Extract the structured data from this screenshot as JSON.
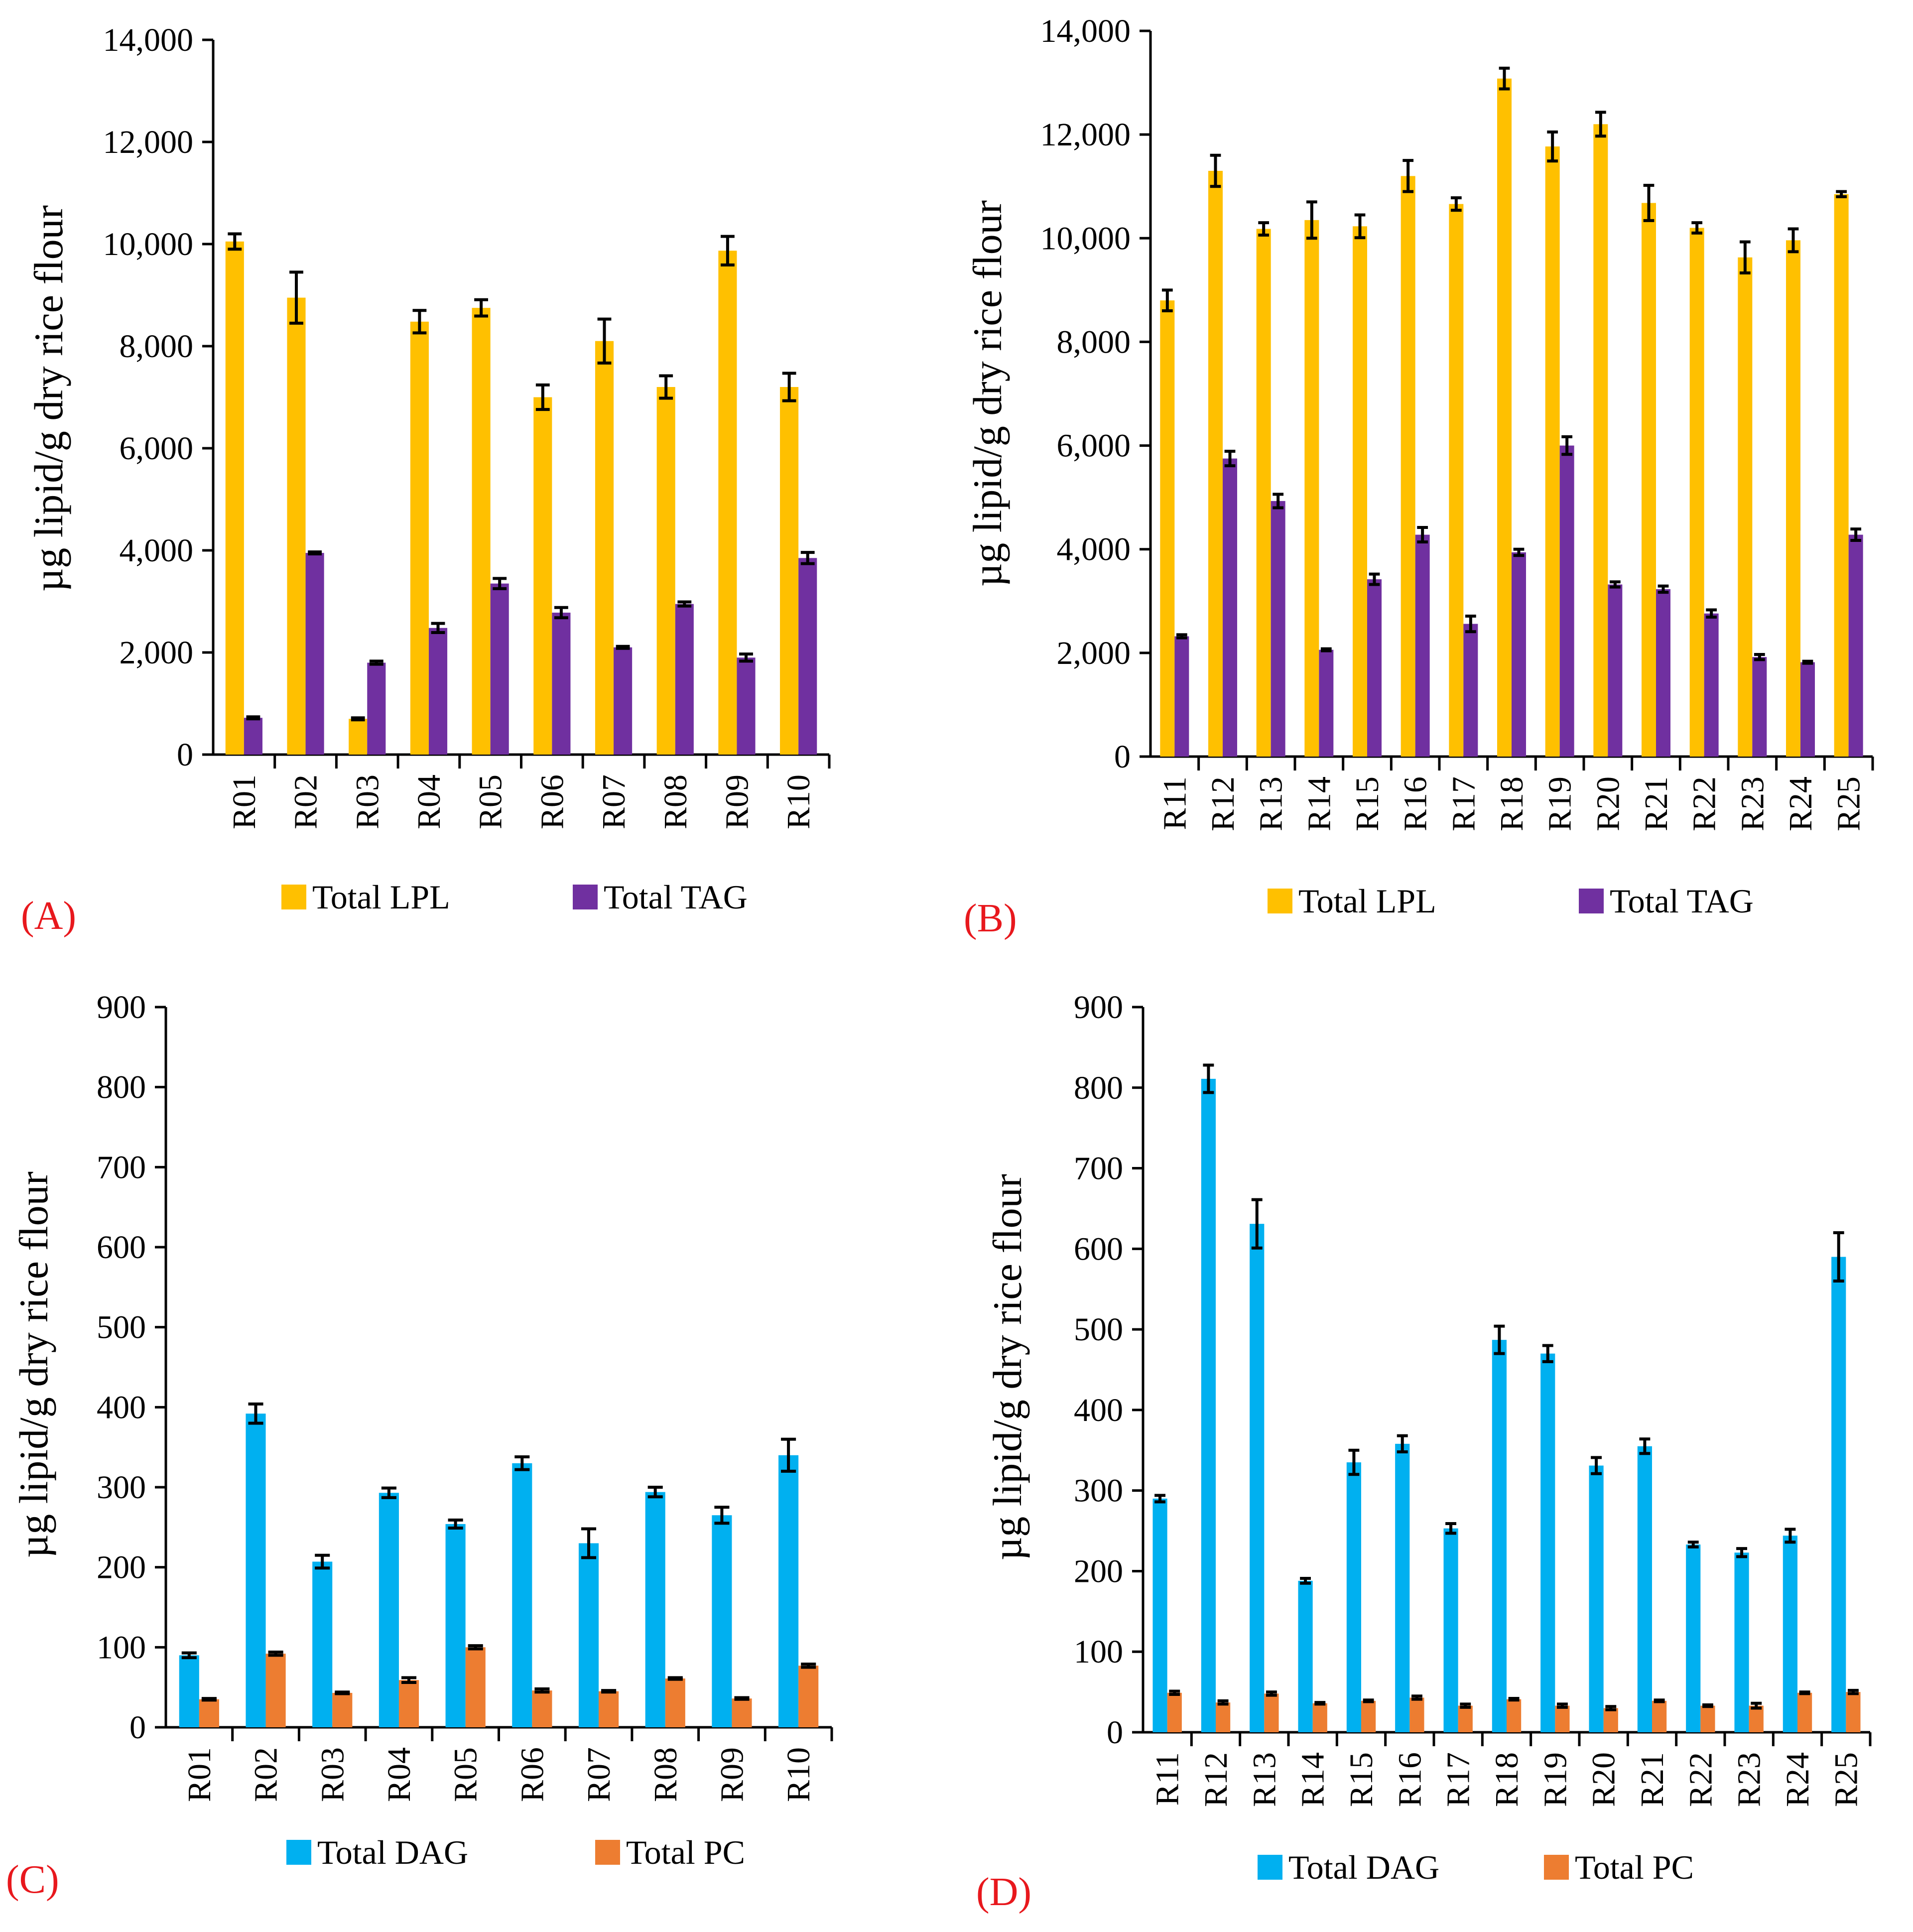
{
  "chart_data": [
    {
      "panel_label": "(A)",
      "type": "bar",
      "ylabel": "µg lipid/g dry rice flour",
      "ylim": [
        0,
        14000
      ],
      "yticks": [
        0,
        2000,
        4000,
        6000,
        8000,
        10000,
        12000,
        14000
      ],
      "ytick_labels": [
        "0",
        "2,000",
        "4,000",
        "6,000",
        "8,000",
        "10,000",
        "12,000",
        "14,000"
      ],
      "categories": [
        "R01",
        "R02",
        "R03",
        "R04",
        "R05",
        "R06",
        "R07",
        "R08",
        "R09",
        "R10"
      ],
      "series": [
        {
          "name": "Total LPL",
          "color": "#ffc000",
          "values": [
            10050,
            8950,
            700,
            8480,
            8750,
            7000,
            8100,
            7200,
            9870,
            7200
          ],
          "errors": [
            150,
            500,
            0,
            220,
            160,
            240,
            430,
            220,
            280,
            270
          ]
        },
        {
          "name": "Total TAG",
          "color": "#7030a0",
          "values": [
            720,
            3950,
            1800,
            2480,
            3350,
            2780,
            2100,
            2950,
            1900,
            3850
          ],
          "errors": [
            0,
            0,
            30,
            90,
            100,
            100,
            0,
            40,
            70,
            110
          ]
        }
      ],
      "legend": [
        "Total LPL",
        "Total TAG"
      ]
    },
    {
      "panel_label": "(B)",
      "type": "bar",
      "ylabel": "µg lipid/g dry rice flour",
      "ylim": [
        0,
        14000
      ],
      "yticks": [
        0,
        2000,
        4000,
        6000,
        8000,
        10000,
        12000,
        14000
      ],
      "ytick_labels": [
        "0",
        "2,000",
        "4,000",
        "6,000",
        "8,000",
        "10,000",
        "12,000",
        "14,000"
      ],
      "categories": [
        "R11",
        "R12",
        "R13",
        "R14",
        "R15",
        "R16",
        "R17",
        "R18",
        "R19",
        "R20",
        "R21",
        "R22",
        "R23",
        "R24",
        "R25"
      ],
      "series": [
        {
          "name": "Total LPL",
          "color": "#ffc000",
          "values": [
            8800,
            11300,
            10180,
            10350,
            10230,
            11200,
            10660,
            13080,
            11770,
            12200,
            10680,
            10200,
            9630,
            9960,
            10850
          ],
          "errors": [
            200,
            300,
            120,
            350,
            220,
            300,
            120,
            200,
            280,
            230,
            340,
            100,
            300,
            220,
            50
          ]
        },
        {
          "name": "Total TAG",
          "color": "#7030a0",
          "values": [
            2320,
            5750,
            4930,
            2060,
            3420,
            4280,
            2560,
            3940,
            6000,
            3320,
            3230,
            2760,
            1920,
            1820,
            4280
          ],
          "errors": [
            30,
            140,
            130,
            0,
            100,
            140,
            150,
            60,
            170,
            50,
            60,
            70,
            50,
            0,
            110
          ]
        }
      ],
      "legend": [
        "Total LPL",
        "Total TAG"
      ]
    },
    {
      "panel_label": "(C)",
      "type": "bar",
      "ylabel": "µg lipid/g dry rice flour",
      "ylim": [
        0,
        900
      ],
      "yticks": [
        0,
        100,
        200,
        300,
        400,
        500,
        600,
        700,
        800,
        900
      ],
      "ytick_labels": [
        "0",
        "100",
        "200",
        "300",
        "400",
        "500",
        "600",
        "700",
        "800",
        "900"
      ],
      "categories": [
        "R01",
        "R02",
        "R03",
        "R04",
        "R05",
        "R06",
        "R07",
        "R08",
        "R09",
        "R10"
      ],
      "series": [
        {
          "name": "Total DAG",
          "color": "#00b0f0",
          "values": [
            90,
            392,
            207,
            293,
            254,
            330,
            230,
            294,
            265,
            340
          ],
          "errors": [
            3,
            12,
            8,
            6,
            5,
            8,
            18,
            6,
            10,
            20
          ]
        },
        {
          "name": "Total PC",
          "color": "#ed7d31",
          "values": [
            35,
            92,
            43,
            59,
            100,
            46,
            45,
            61,
            36,
            77
          ],
          "errors": [
            1,
            2,
            1,
            3,
            2,
            2,
            1,
            1,
            1,
            2
          ]
        }
      ],
      "legend": [
        "Total DAG",
        "Total PC"
      ]
    },
    {
      "panel_label": "(D)",
      "type": "bar",
      "ylabel": "µg lipid/g dry rice flour",
      "ylim": [
        0,
        900
      ],
      "yticks": [
        0,
        100,
        200,
        300,
        400,
        500,
        600,
        700,
        800,
        900
      ],
      "ytick_labels": [
        "0",
        "100",
        "200",
        "300",
        "400",
        "500",
        "600",
        "700",
        "800",
        "900"
      ],
      "categories": [
        "R11",
        "R12",
        "R13",
        "R14",
        "R15",
        "R16",
        "R17",
        "R18",
        "R19",
        "R20",
        "R21",
        "R22",
        "R23",
        "R24",
        "R25"
      ],
      "series": [
        {
          "name": "Total DAG",
          "color": "#00b0f0",
          "values": [
            290,
            811,
            631,
            188,
            335,
            358,
            253,
            487,
            470,
            331,
            355,
            233,
            223,
            244,
            590
          ],
          "errors": [
            4,
            17,
            30,
            3,
            15,
            10,
            6,
            17,
            10,
            10,
            9,
            3,
            5,
            8,
            30
          ]
        },
        {
          "name": "Total PC",
          "color": "#ed7d31",
          "values": [
            49,
            37,
            48,
            36,
            39,
            43,
            33,
            41,
            33,
            30,
            39,
            33,
            33,
            49,
            50
          ],
          "errors": [
            2,
            2,
            2,
            1,
            1,
            2,
            2,
            1,
            2,
            2,
            1,
            1,
            3,
            1,
            2
          ]
        }
      ],
      "legend": [
        "Total DAG",
        "Total PC"
      ]
    }
  ]
}
